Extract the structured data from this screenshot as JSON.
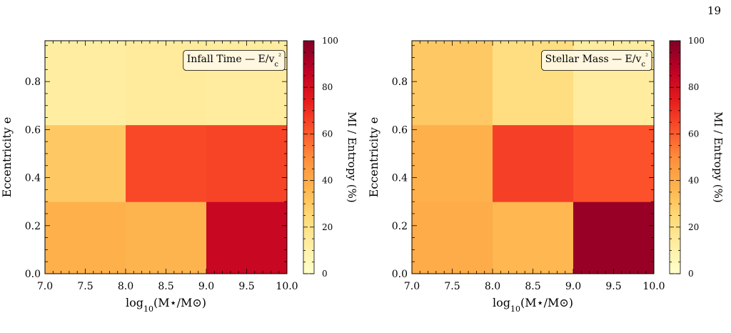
{
  "page": {
    "number": "19"
  },
  "chart_data": [
    {
      "type": "heatmap",
      "annotation": "Infall Time — E/v_c²",
      "xlabel": "log10(M⋆/M⊙)",
      "ylabel": "Eccentricity e",
      "colorbar_label": "MI / Entropy (%)",
      "x_edges": [
        7.0,
        8.0,
        9.0,
        10.0
      ],
      "y_edges": [
        0.0,
        0.3,
        0.62,
        0.97
      ],
      "xlim": [
        7.0,
        10.0
      ],
      "ylim": [
        0.0,
        0.97
      ],
      "clim": [
        0,
        100
      ],
      "x_ticks": [
        "7.0",
        "7.5",
        "8.0",
        "8.5",
        "9.0",
        "9.5",
        "10.0"
      ],
      "y_ticks": [
        "0.0",
        "0.2",
        "0.4",
        "0.6",
        "0.8"
      ],
      "colorbar_ticks": [
        "0",
        "20",
        "40",
        "60",
        "80",
        "100"
      ],
      "values": [
        [
          38,
          37,
          84
        ],
        [
          30,
          64,
          65
        ],
        [
          12,
          14,
          13
        ]
      ]
    },
    {
      "type": "heatmap",
      "annotation": "Stellar Mass — E/v_c²",
      "xlabel": "log10(M⋆/M⊙)",
      "ylabel": "Eccentricity e",
      "colorbar_label": "MI / Entropy (%)",
      "x_edges": [
        7.0,
        8.0,
        9.0,
        10.0
      ],
      "y_edges": [
        0.0,
        0.3,
        0.62,
        0.97
      ],
      "xlim": [
        7.0,
        10.0
      ],
      "ylim": [
        0.0,
        0.97
      ],
      "clim": [
        0,
        100
      ],
      "x_ticks": [
        "7.0",
        "7.5",
        "8.0",
        "8.5",
        "9.0",
        "9.5",
        "10.0"
      ],
      "y_ticks": [
        "0.0",
        "0.2",
        "0.4",
        "0.6",
        "0.8"
      ],
      "colorbar_ticks": [
        "0",
        "20",
        "40",
        "60",
        "80",
        "100"
      ],
      "values": [
        [
          40,
          36,
          95
        ],
        [
          38,
          66,
          62
        ],
        [
          30,
          22,
          13
        ]
      ]
    }
  ]
}
